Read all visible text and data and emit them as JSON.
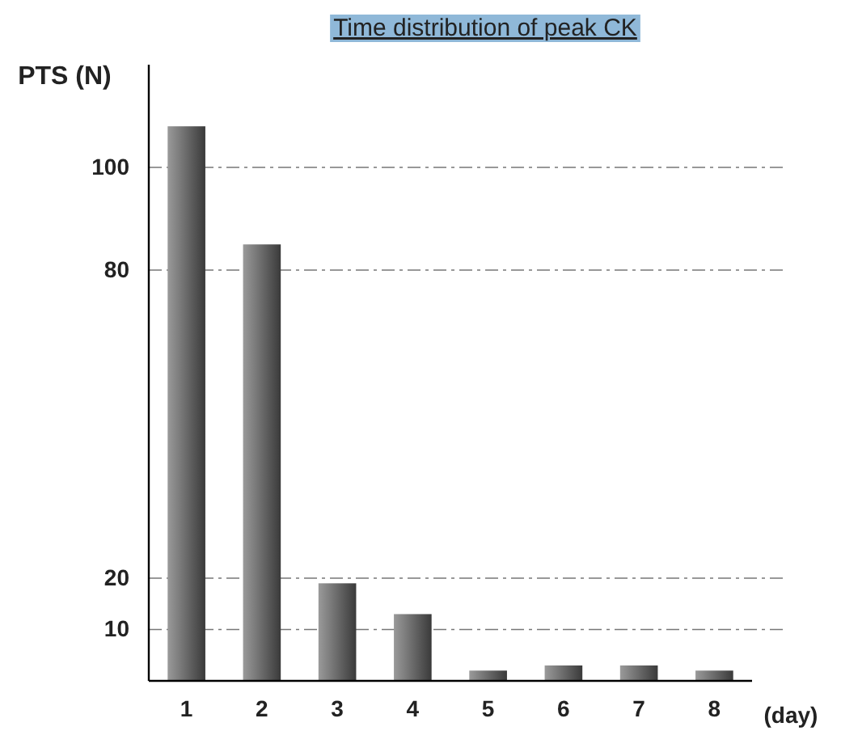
{
  "chart_data": {
    "type": "bar",
    "title": "Time distribution of peak CK",
    "xlabel": "(day)",
    "ylabel": "PTS (N)",
    "categories": [
      "1",
      "2",
      "3",
      "4",
      "5",
      "6",
      "7",
      "8"
    ],
    "values": [
      108,
      85,
      19,
      13,
      2,
      3,
      3,
      2
    ],
    "color": "#3a3a3a",
    "ylim": [
      0,
      120
    ],
    "yticks": [
      10,
      20,
      80,
      100
    ],
    "grid": "y"
  }
}
